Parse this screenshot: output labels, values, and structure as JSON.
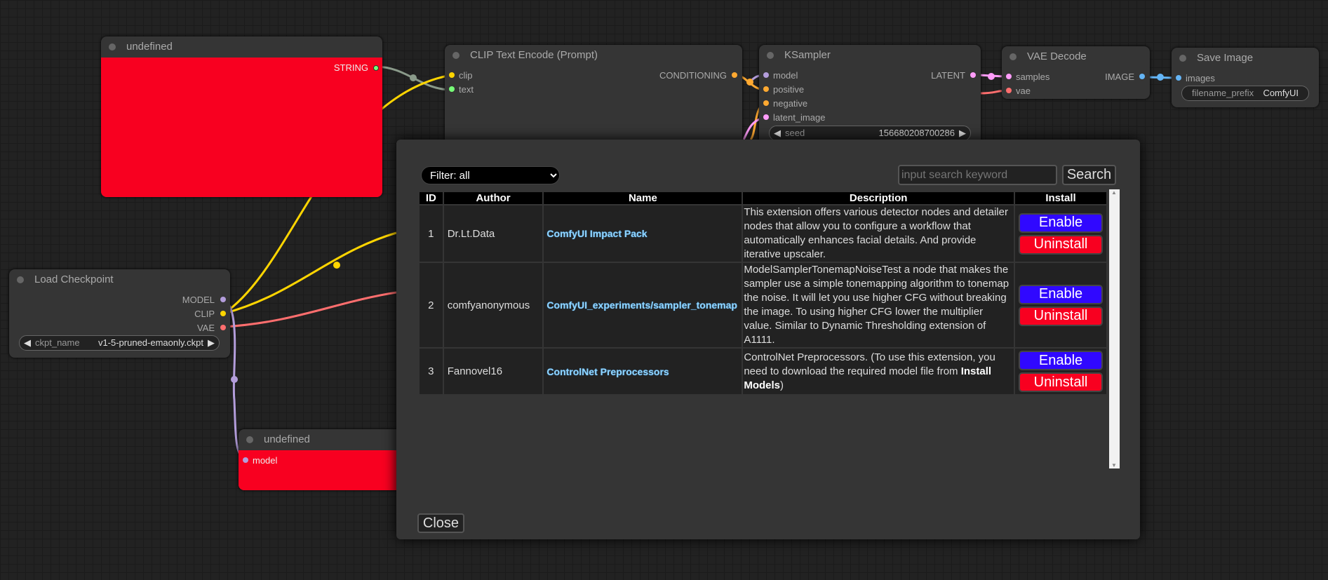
{
  "nodes": {
    "undefined_top": {
      "title": "undefined",
      "output": "STRING",
      "color": "#f80020"
    },
    "clip_text_encode": {
      "title": "CLIP Text Encode (Prompt)",
      "inputs": [
        "clip",
        "text"
      ],
      "output": "CONDITIONING"
    },
    "ksampler": {
      "title": "KSampler",
      "inputs": [
        "model",
        "positive",
        "negative",
        "latent_image"
      ],
      "output": "LATENT",
      "seed_label": "seed",
      "seed_value": "156680208700286"
    },
    "vae_decode": {
      "title": "VAE Decode",
      "inputs": [
        "samples",
        "vae"
      ],
      "output": "IMAGE"
    },
    "save_image": {
      "title": "Save Image",
      "inputs": [
        "images"
      ],
      "prefix_label": "filename_prefix",
      "prefix_value": "ComfyUI"
    },
    "load_checkpoint": {
      "title": "Load Checkpoint",
      "outputs": [
        "MODEL",
        "CLIP",
        "VAE"
      ],
      "ckpt_label": "ckpt_name",
      "ckpt_value": "v1-5-pruned-emaonly.ckpt"
    },
    "undefined_bottom": {
      "title": "undefined",
      "input": "model"
    }
  },
  "dialog": {
    "filter": "Filter: all",
    "search_placeholder": "input search keyword",
    "search_label": "Search",
    "columns": [
      "ID",
      "Author",
      "Name",
      "Description",
      "Install"
    ],
    "rows": [
      {
        "id": "1",
        "author": "Dr.Lt.Data",
        "name": "ComfyUI Impact Pack",
        "description": "This extension offers various detector nodes and detailer nodes that allow you to configure a workflow that automatically enhances facial details. And provide iterative upscaler.",
        "enable": "Enable",
        "uninstall": "Uninstall"
      },
      {
        "id": "2",
        "author": "comfyanonymous",
        "name": "ComfyUI_experiments/sampler_tonemap",
        "description": "ModelSamplerTonemapNoiseTest a node that makes the sampler use a simple tonemapping algorithm to tonemap the noise. It will let you use higher CFG without breaking the image. To using higher CFG lower the multiplier value. Similar to Dynamic Thresholding extension of A1111.",
        "enable": "Enable",
        "uninstall": "Uninstall"
      },
      {
        "id": "3",
        "author": "Fannovel16",
        "name": "ControlNet Preprocessors",
        "description": "ControlNet Preprocessors. (To use this extension, you need to download the required model file from ",
        "description_bold": "Install Models",
        "description_end": ")",
        "enable": "Enable",
        "uninstall": "Uninstall"
      }
    ],
    "close_label": "Close",
    "colors": {
      "enable": "#3008ff",
      "uninstall": "#f80020"
    }
  }
}
